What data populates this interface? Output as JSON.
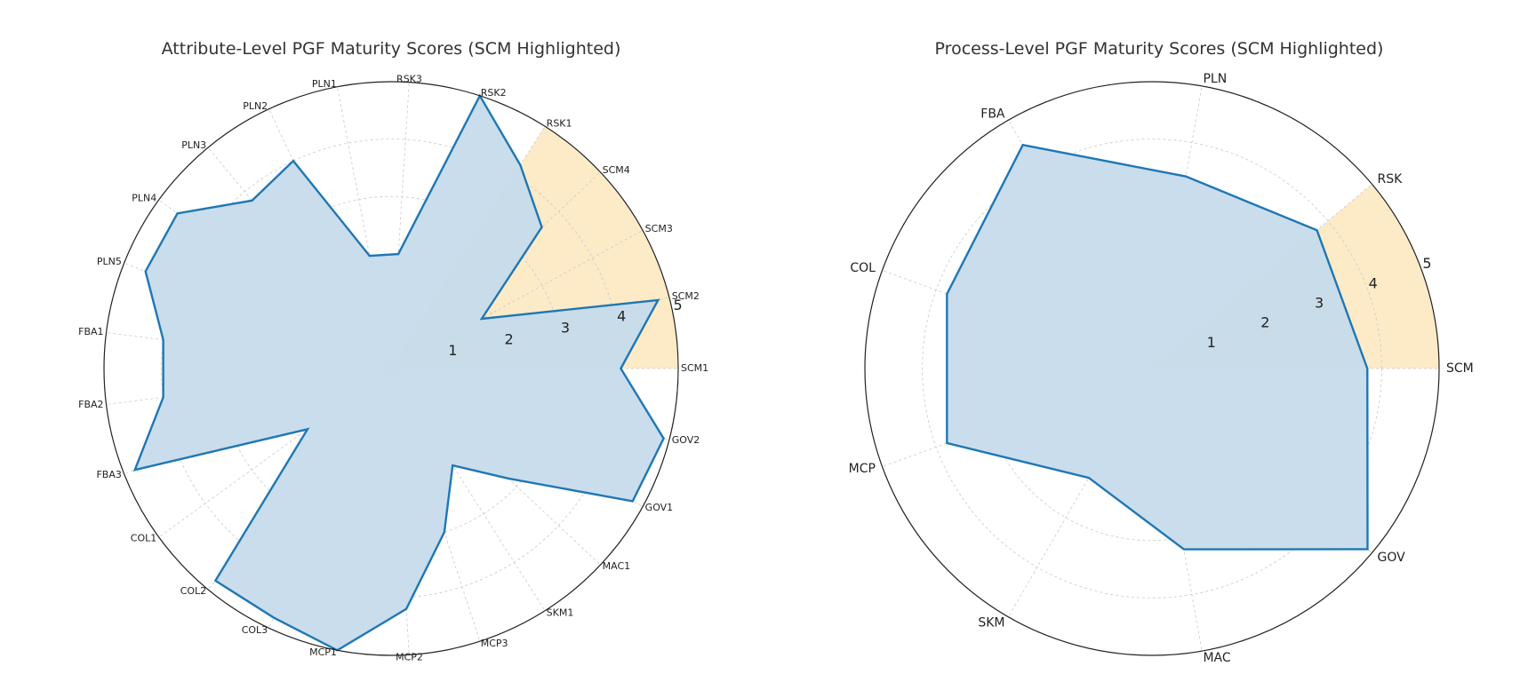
{
  "chart_data": [
    {
      "type": "radar",
      "title": "Attribute-Level PGF Maturity Scores (SCM Highlighted)",
      "categories": [
        "SCM1",
        "SCM2",
        "SCM3",
        "SCM4",
        "RSK1",
        "RSK2",
        "RSK3",
        "PLN1",
        "PLN2",
        "PLN3",
        "PLN4",
        "PLN5",
        "FBA1",
        "FBA2",
        "FBA3",
        "COL1",
        "COL2",
        "COL3",
        "MCP1",
        "MCP2",
        "MCP3",
        "SKM1",
        "MAC1",
        "GOV1",
        "GOV2"
      ],
      "values": [
        4.0,
        4.8,
        1.8,
        3.6,
        4.2,
        5.0,
        2.0,
        2.0,
        4.0,
        3.8,
        4.6,
        4.6,
        4.0,
        4.0,
        4.8,
        1.8,
        4.8,
        4.8,
        5.0,
        4.2,
        3.0,
        2.0,
        2.8,
        4.8,
        4.9
      ],
      "rticks": [
        1,
        2,
        3,
        4,
        5
      ],
      "rlim": [
        0,
        5
      ],
      "highlight": "SCM",
      "highlight_color": "#fdebc8",
      "series_color": "#1f77b4",
      "fill_color": "#c6dbeb",
      "grid": true
    },
    {
      "type": "radar",
      "title": "Process-Level PGF Maturity Scores (SCM Highlighted)",
      "categories": [
        "SCM",
        "RSK",
        "PLN",
        "FBA",
        "COL",
        "MCP",
        "SKM",
        "MAC",
        "GOV"
      ],
      "values": [
        3.75,
        3.75,
        3.4,
        4.5,
        3.8,
        3.8,
        2.2,
        3.2,
        4.9
      ],
      "rticks": [
        1,
        2,
        3,
        4,
        5
      ],
      "rlim": [
        0,
        5
      ],
      "highlight": "SCM",
      "highlight_color": "#fdebc8",
      "series_color": "#1f77b4",
      "fill_color": "#c6dbeb",
      "grid": true
    }
  ]
}
